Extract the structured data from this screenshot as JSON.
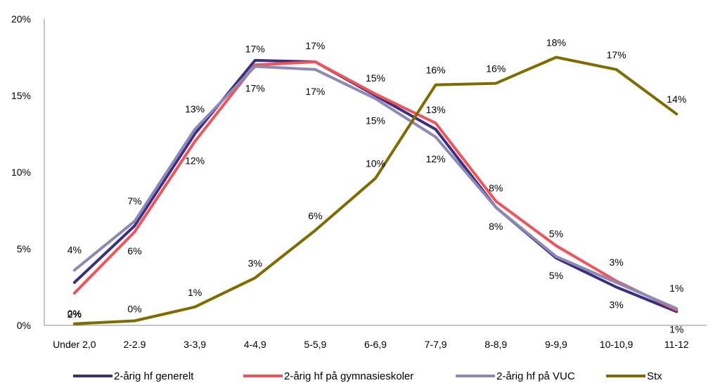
{
  "chart_data": {
    "type": "line",
    "categories": [
      "Under 2,0",
      "2-2.9",
      "3-3,9",
      "4-4,9",
      "5-5,9",
      "6-6,9",
      "7-7,9",
      "8-8,9",
      "9-9,9",
      "10-10,9",
      "11-12"
    ],
    "ylim": [
      0,
      20
    ],
    "yticks": [
      0,
      5,
      10,
      15,
      20
    ],
    "ytick_labels": [
      "0%",
      "5%",
      "10%",
      "15%",
      "20%"
    ],
    "grid": false,
    "legend_position": "bottom",
    "title": "",
    "xlabel": "",
    "ylabel": "",
    "series": [
      {
        "name": "2-årig hf generelt",
        "color": "#3b2f7f",
        "values": [
          2.8,
          6.5,
          12.5,
          17.3,
          17.2,
          15.0,
          12.8,
          7.7,
          4.4,
          2.5,
          0.9
        ],
        "labels": [
          null,
          null,
          null,
          null,
          null,
          null,
          null,
          null,
          null,
          "3%",
          "1%"
        ]
      },
      {
        "name": "2-årig hf på gymnasieskoler",
        "color": "#f0545a",
        "values": [
          2.1,
          6.1,
          12.0,
          17.0,
          17.2,
          15.1,
          13.2,
          8.1,
          5.2,
          2.9,
          1.0
        ],
        "labels": [
          "2%",
          "6%",
          "12%",
          "17%",
          "17%",
          "15%",
          "13%",
          "8%",
          "5%",
          null,
          null
        ]
      },
      {
        "name": "2-årig hf på VUC",
        "color": "#8d89b6",
        "values": [
          3.6,
          6.8,
          12.8,
          16.9,
          16.7,
          14.8,
          12.3,
          7.7,
          4.5,
          2.8,
          1.1
        ],
        "labels": [
          "4%",
          "7%",
          "13%",
          "17%",
          "17%",
          "15%",
          "12%",
          "8%",
          "5%",
          "3%",
          "1%"
        ]
      },
      {
        "name": "Stx",
        "color": "#7f6b00",
        "values": [
          0.1,
          0.3,
          1.2,
          3.1,
          6.2,
          9.6,
          15.7,
          15.8,
          17.5,
          16.7,
          13.8
        ],
        "labels": [
          "0%",
          "0%",
          "1%",
          "3%",
          "6%",
          "10%",
          "16%",
          "16%",
          "18%",
          "17%",
          "14%"
        ]
      }
    ]
  }
}
